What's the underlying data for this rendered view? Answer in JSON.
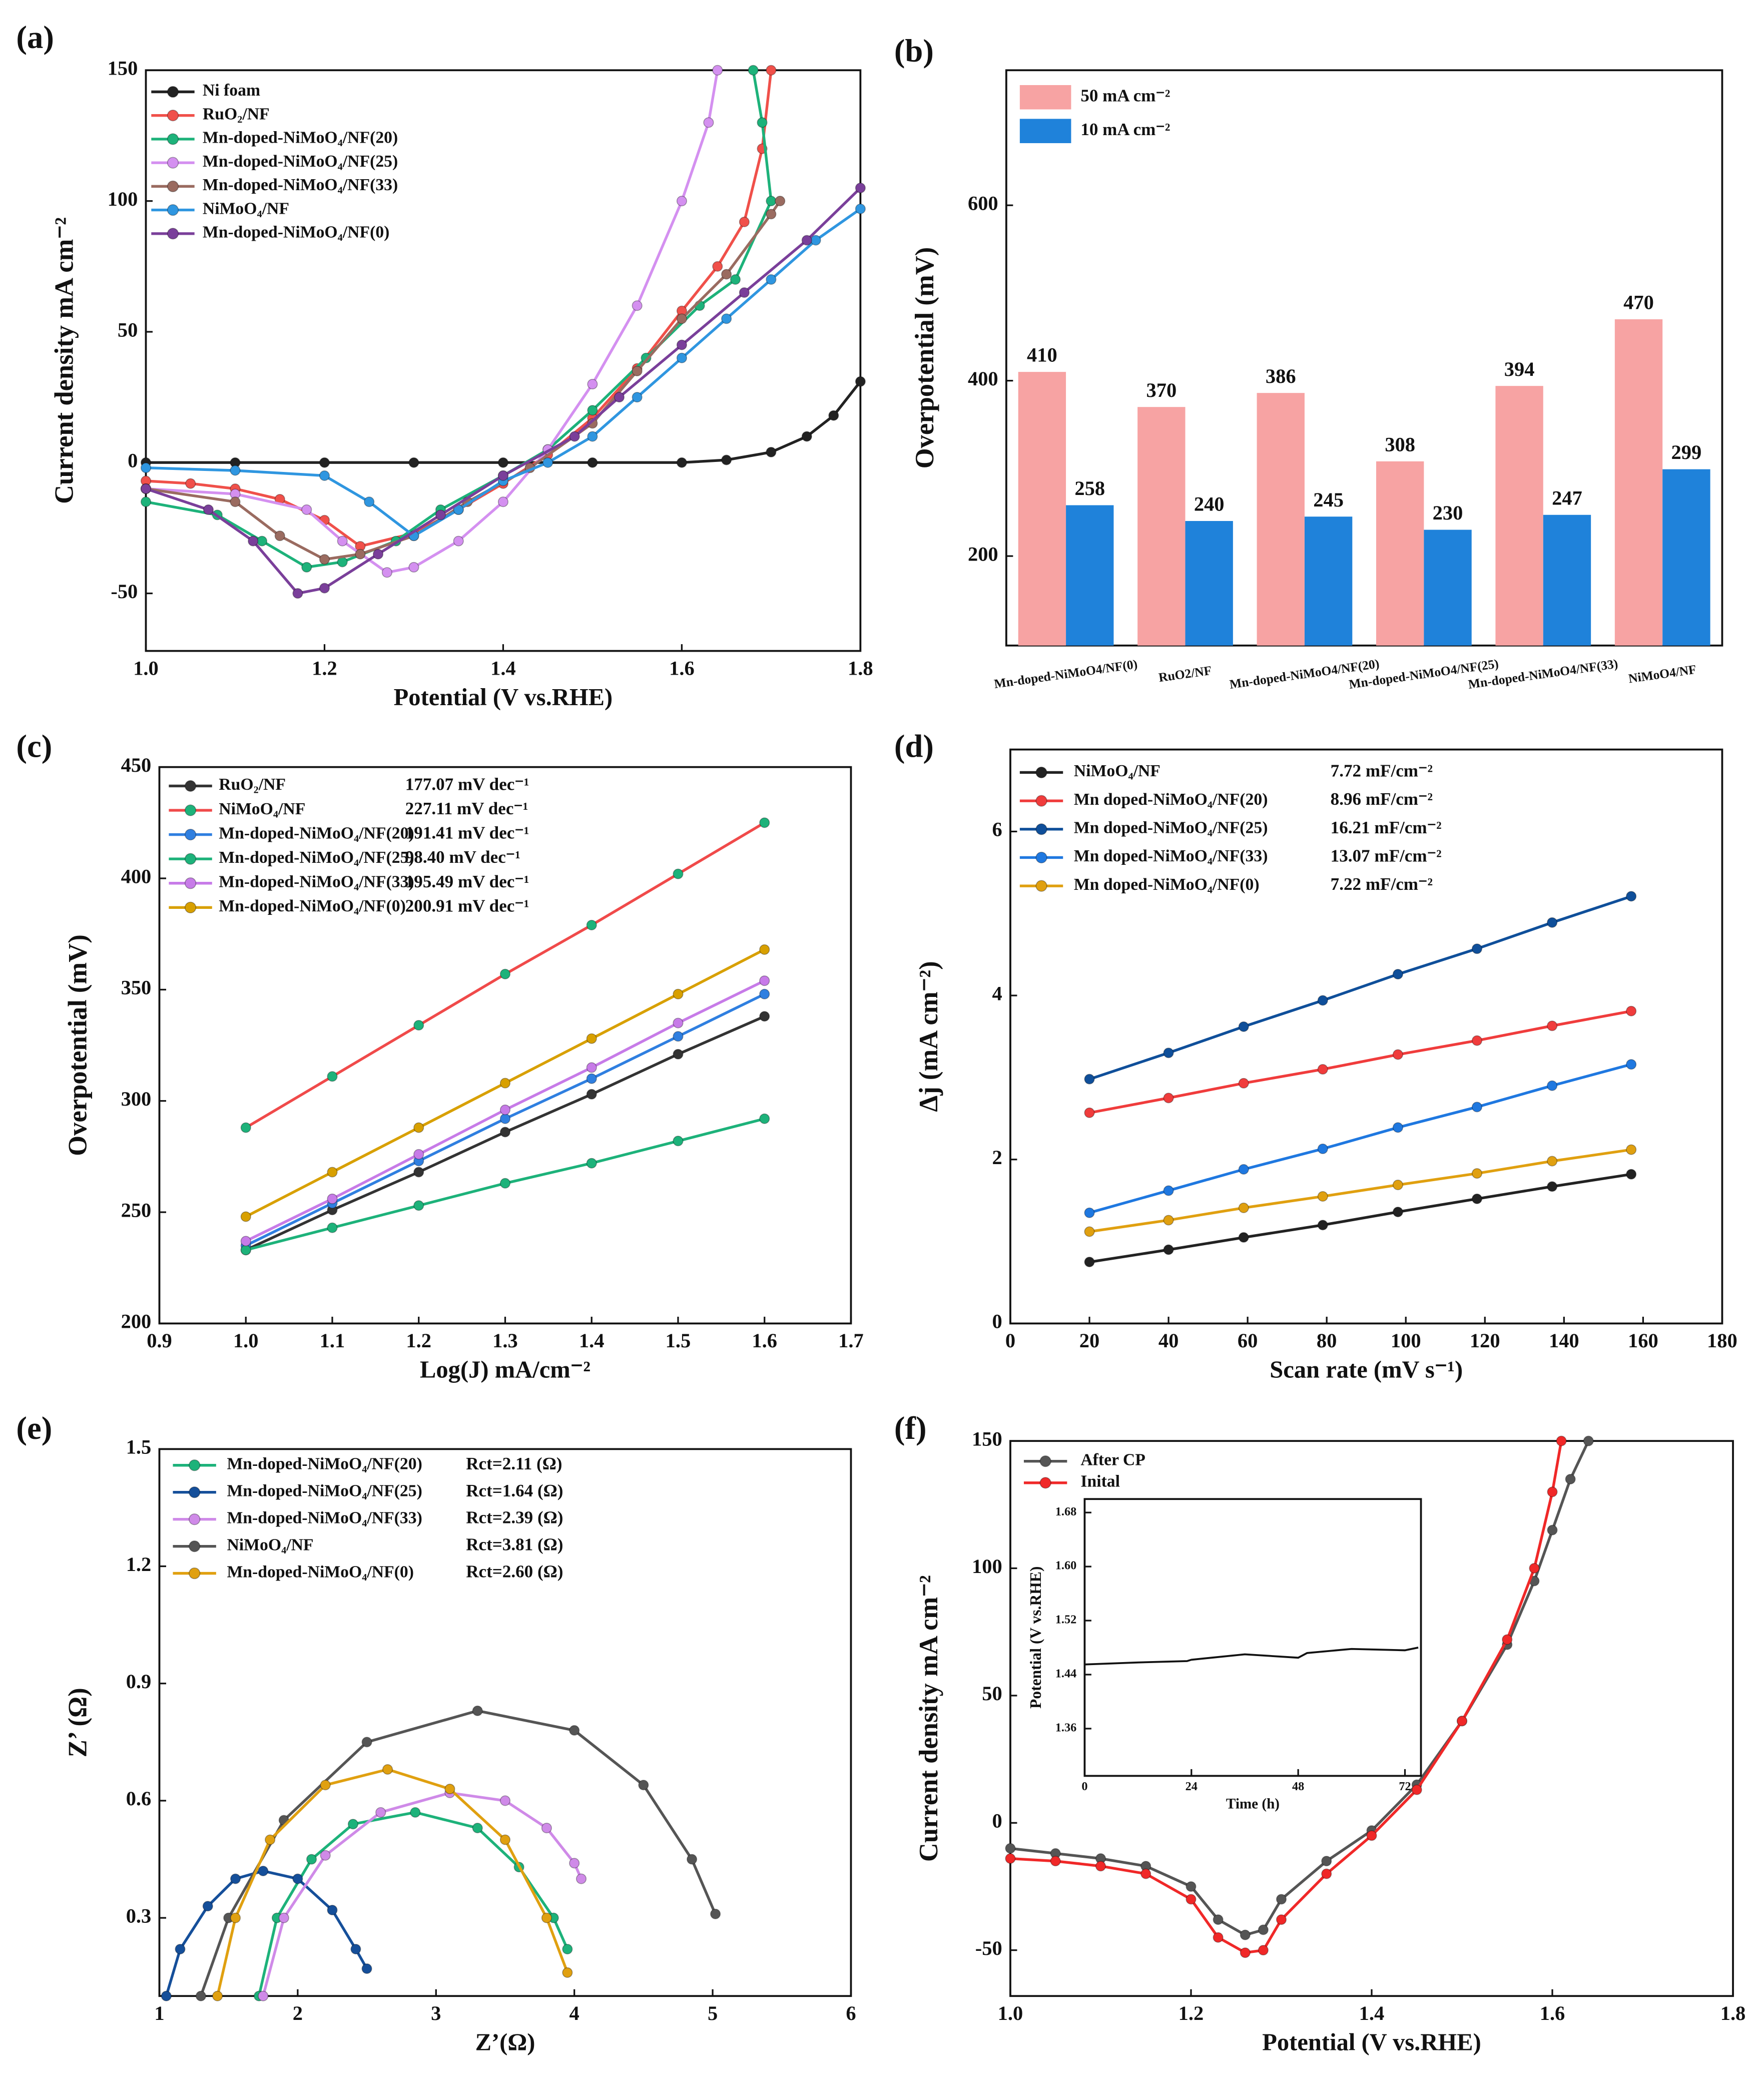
{
  "chart_data": [
    {
      "type": "line",
      "label": "(a)",
      "xlabel": "Potential (V vs.RHE)",
      "ylabel": "Current density mA cm⁻²",
      "xlim": [
        1.0,
        1.8
      ],
      "ylim": [
        -72,
        150
      ],
      "xticks": [
        {
          "value": 1.0,
          "label": "1.0"
        },
        1.2,
        1.4,
        1.6,
        1.8
      ],
      "yticks": [
        -50,
        0,
        50,
        100,
        150
      ],
      "series": [
        {
          "name": "Ni foam",
          "color": "#222222",
          "x": [
            1.0,
            1.1,
            1.2,
            1.3,
            1.4,
            1.5,
            1.6,
            1.65,
            1.7,
            1.74,
            1.77,
            1.8
          ],
          "values": [
            0,
            0,
            0,
            0,
            0,
            0,
            0,
            1,
            4,
            10,
            18,
            31
          ]
        },
        {
          "name": "RuO₂/NF",
          "color": "#f0504a",
          "x": [
            1.0,
            1.05,
            1.1,
            1.15,
            1.2,
            1.24,
            1.3,
            1.35,
            1.4,
            1.45,
            1.5,
            1.55,
            1.6,
            1.64,
            1.67,
            1.69,
            1.7
          ],
          "values": [
            -7,
            -8,
            -10,
            -14,
            -22,
            -32,
            -27,
            -18,
            -8,
            3,
            17,
            36,
            58,
            75,
            92,
            120,
            150
          ]
        },
        {
          "name": "Mn-doped-NiMoO₄/NF(20)",
          "color": "#1db27a",
          "x": [
            1.0,
            1.08,
            1.13,
            1.18,
            1.22,
            1.28,
            1.33,
            1.4,
            1.45,
            1.5,
            1.56,
            1.62,
            1.66,
            1.7,
            1.69,
            1.68
          ],
          "values": [
            -15,
            -20,
            -30,
            -40,
            -38,
            -30,
            -18,
            -5,
            5,
            20,
            40,
            60,
            70,
            100,
            130,
            150
          ]
        },
        {
          "name": "Mn-doped-NiMoO₄/NF(25)",
          "color": "#d490f0",
          "x": [
            1.0,
            1.1,
            1.18,
            1.22,
            1.27,
            1.3,
            1.35,
            1.4,
            1.45,
            1.5,
            1.55,
            1.6,
            1.63,
            1.64
          ],
          "values": [
            -10,
            -12,
            -18,
            -30,
            -42,
            -40,
            -30,
            -15,
            5,
            30,
            60,
            100,
            130,
            150
          ]
        },
        {
          "name": "Mn-doped-NiMoO₄/NF(33)",
          "color": "#9a6b60",
          "x": [
            1.0,
            1.1,
            1.15,
            1.2,
            1.24,
            1.3,
            1.36,
            1.43,
            1.5,
            1.55,
            1.6,
            1.65,
            1.7,
            1.71
          ],
          "values": [
            -10,
            -15,
            -28,
            -37,
            -35,
            -28,
            -15,
            -2,
            15,
            35,
            55,
            72,
            95,
            100
          ]
        },
        {
          "name": "NiMoO₄/NF",
          "color": "#2f96e0",
          "x": [
            1.0,
            1.1,
            1.2,
            1.25,
            1.3,
            1.35,
            1.4,
            1.45,
            1.5,
            1.55,
            1.6,
            1.65,
            1.7,
            1.75,
            1.8
          ],
          "values": [
            -2,
            -3,
            -5,
            -15,
            -28,
            -18,
            -7,
            0,
            10,
            25,
            40,
            55,
            70,
            85,
            97
          ]
        },
        {
          "name": "Mn-doped-NiMoO₄/NF(0)",
          "color": "#7a3f9a",
          "x": [
            1.0,
            1.07,
            1.12,
            1.17,
            1.2,
            1.26,
            1.33,
            1.4,
            1.48,
            1.53,
            1.6,
            1.67,
            1.74,
            1.8
          ],
          "values": [
            -10,
            -18,
            -30,
            -50,
            -48,
            -35,
            -20,
            -5,
            10,
            25,
            45,
            65,
            85,
            105
          ]
        }
      ]
    },
    {
      "type": "bar",
      "label": "(b)",
      "ylabel": "Overpotential (mV)",
      "ylim": [
        98,
        754
      ],
      "yticks": [
        200,
        400,
        600
      ],
      "categories": [
        "Mn-doped-NiMoO4/NF(0)",
        "RuO2/NF",
        "Mn-doped-NiMoO4/NF(20)",
        "Mn-doped-NiMoO4/NF(25)",
        "Mn-doped-NiMoO4/NF(33)",
        "NiMoO4/NF"
      ],
      "series": [
        {
          "name": "50 mA cm⁻²",
          "color": "#f7a3a3",
          "values": [
            410,
            370,
            386,
            308,
            394,
            470
          ]
        },
        {
          "name": "10 mA cm⁻²",
          "color": "#1f82da",
          "values": [
            258,
            240,
            245,
            230,
            247,
            299
          ]
        }
      ]
    },
    {
      "type": "line",
      "label": "(c)",
      "xlabel": "Log(J) mA/cm⁻²",
      "ylabel": "Overpotential (mV)",
      "xlim": [
        0.9,
        1.7
      ],
      "ylim": [
        200,
        450
      ],
      "xticks": [
        0.9,
        {
          "value": 1.0,
          "label": "1.0"
        },
        1.1,
        1.2,
        1.3,
        1.4,
        1.5,
        1.6,
        1.7
      ],
      "yticks": [
        200,
        250,
        300,
        350,
        400,
        450
      ],
      "series": [
        {
          "name": "RuO₂/NF",
          "note": "177.07 mV dec⁻¹",
          "color": "#333333",
          "x": [
            1.0,
            1.1,
            1.2,
            1.3,
            1.4,
            1.5,
            1.6
          ],
          "values": [
            233,
            251,
            268,
            286,
            303,
            321,
            338
          ]
        },
        {
          "name": "NiMoO₄/NF",
          "note": "227.11 mV dec⁻¹",
          "color": "#f04a4a",
          "marker_color": "#1db27a",
          "x": [
            1.0,
            1.1,
            1.2,
            1.3,
            1.4,
            1.5,
            1.6
          ],
          "values": [
            288,
            311,
            334,
            357,
            379,
            402,
            425
          ]
        },
        {
          "name": "Mn-doped-NiMoO₄/NF(20)",
          "note": "191.41 mV dec⁻¹",
          "color": "#2f7fe0",
          "x": [
            1.0,
            1.1,
            1.2,
            1.3,
            1.4,
            1.5,
            1.6
          ],
          "values": [
            235,
            254,
            273,
            292,
            310,
            329,
            348
          ]
        },
        {
          "name": "Mn-doped-NiMoO₄/NF(25)",
          "note": "98.40 mV dec⁻¹",
          "color": "#1db27a",
          "x": [
            1.0,
            1.1,
            1.2,
            1.3,
            1.4,
            1.5,
            1.6
          ],
          "values": [
            233,
            243,
            253,
            263,
            272,
            282,
            292
          ]
        },
        {
          "name": "Mn-doped-NiMoO₄/NF(33)",
          "note": "195.49 mV dec⁻¹",
          "color": "#c77be8",
          "x": [
            1.0,
            1.1,
            1.2,
            1.3,
            1.4,
            1.5,
            1.6
          ],
          "values": [
            237,
            256,
            276,
            296,
            315,
            335,
            354
          ]
        },
        {
          "name": "Mn-doped-NiMoO₄/NF(0)",
          "note": "200.91 mV dec⁻¹",
          "color": "#d8a000",
          "x": [
            1.0,
            1.1,
            1.2,
            1.3,
            1.4,
            1.5,
            1.6
          ],
          "values": [
            248,
            268,
            288,
            308,
            328,
            348,
            368
          ]
        }
      ]
    },
    {
      "type": "line",
      "label": "(d)",
      "xlabel": "Scan rate (mV s⁻¹)",
      "ylabel": "Δj (mA cm⁻²)",
      "xlim": [
        0,
        180
      ],
      "ylim": [
        0,
        7
      ],
      "xticks": [
        0,
        20,
        40,
        60,
        80,
        100,
        120,
        140,
        160,
        180
      ],
      "yticks": [
        0,
        2,
        4,
        6
      ],
      "series": [
        {
          "name": "NiMoO₄/NF",
          "note": "7.72 mF/cm⁻²",
          "color": "#222222",
          "x": [
            20,
            40,
            59,
            79,
            98,
            118,
            137,
            157
          ],
          "values": [
            0.75,
            0.9,
            1.05,
            1.2,
            1.36,
            1.52,
            1.67,
            1.82
          ]
        },
        {
          "name": "Mn doped-NiMoO₄/NF(20)",
          "note": "8.96 mF/cm⁻²",
          "color": "#f03c3c",
          "x": [
            20,
            40,
            59,
            79,
            98,
            118,
            137,
            157
          ],
          "values": [
            2.57,
            2.75,
            2.93,
            3.1,
            3.28,
            3.45,
            3.63,
            3.81
          ]
        },
        {
          "name": "Mn doped-NiMoO₄/NF(25)",
          "note": "16.21 mF/cm⁻²",
          "color": "#0f4f9a",
          "x": [
            20,
            40,
            59,
            79,
            98,
            118,
            137,
            157
          ],
          "values": [
            2.98,
            3.3,
            3.62,
            3.94,
            4.26,
            4.57,
            4.89,
            5.21
          ]
        },
        {
          "name": "Mn doped-NiMoO₄/NF(33)",
          "note": "13.07 mF/cm⁻²",
          "color": "#1f78e0",
          "x": [
            20,
            40,
            59,
            79,
            98,
            118,
            137,
            157
          ],
          "values": [
            1.35,
            1.62,
            1.88,
            2.13,
            2.39,
            2.64,
            2.9,
            3.16
          ]
        },
        {
          "name": "Mn doped-NiMoO₄/NF(0)",
          "note": "7.22 mF/cm⁻²",
          "color": "#e0a010",
          "x": [
            20,
            40,
            59,
            79,
            98,
            118,
            137,
            157
          ],
          "values": [
            1.12,
            1.26,
            1.41,
            1.55,
            1.69,
            1.83,
            1.98,
            2.12
          ]
        }
      ]
    },
    {
      "type": "line",
      "label": "(e)",
      "xlabel": "Z’(Ω)",
      "ylabel": "Z’ (Ω)",
      "xlim": [
        1,
        6
      ],
      "ylim": [
        0.1,
        1.5
      ],
      "xticks": [
        1,
        2,
        3,
        4,
        5,
        6
      ],
      "yticks": [
        0.3,
        0.6,
        0.9,
        1.2,
        1.5
      ],
      "series": [
        {
          "name": "Mn-doped-NiMoO₄/NF(20)",
          "note": "Rct=2.11 (Ω)",
          "color": "#1db27a",
          "x": [
            1.72,
            1.85,
            2.1,
            2.4,
            2.85,
            3.3,
            3.6,
            3.85,
            3.95
          ],
          "values": [
            0.1,
            0.3,
            0.45,
            0.54,
            0.57,
            0.53,
            0.43,
            0.3,
            0.22
          ]
        },
        {
          "name": "Mn-doped-NiMoO₄/NF(25)",
          "note": "Rct=1.64 (Ω)",
          "color": "#154f9a",
          "x": [
            1.05,
            1.15,
            1.35,
            1.55,
            1.75,
            2.0,
            2.25,
            2.42,
            2.5
          ],
          "values": [
            0.1,
            0.22,
            0.33,
            0.4,
            0.42,
            0.4,
            0.32,
            0.22,
            0.17
          ]
        },
        {
          "name": "Mn-doped-NiMoO₄/NF(33)",
          "note": "Rct=2.39 (Ω)",
          "color": "#cf8ae8",
          "x": [
            1.75,
            1.9,
            2.2,
            2.6,
            3.1,
            3.5,
            3.8,
            4.0,
            4.05
          ],
          "values": [
            0.1,
            0.3,
            0.46,
            0.57,
            0.62,
            0.6,
            0.53,
            0.44,
            0.4
          ]
        },
        {
          "name": "NiMoO₄/NF",
          "note": "Rct=3.81 (Ω)",
          "color": "#555555",
          "x": [
            1.3,
            1.5,
            1.9,
            2.5,
            3.3,
            4.0,
            4.5,
            4.85,
            5.02
          ],
          "values": [
            0.1,
            0.3,
            0.55,
            0.75,
            0.83,
            0.78,
            0.64,
            0.45,
            0.31
          ]
        },
        {
          "name": "Mn-doped-NiMoO₄/NF(0)",
          "note": "Rct=2.60 (Ω)",
          "color": "#e0a010",
          "x": [
            1.42,
            1.55,
            1.8,
            2.2,
            2.65,
            3.1,
            3.5,
            3.8,
            3.95
          ],
          "values": [
            0.1,
            0.3,
            0.5,
            0.64,
            0.68,
            0.63,
            0.5,
            0.3,
            0.16
          ]
        }
      ]
    },
    {
      "type": "line",
      "label": "(f)",
      "xlabel": "Potential (V vs.RHE)",
      "ylabel": "Current density mA cm⁻²",
      "xlim": [
        1.0,
        1.8
      ],
      "ylim": [
        -68,
        150
      ],
      "xticks": [
        {
          "value": 1.0,
          "label": "1.0"
        },
        1.2,
        1.4,
        1.6,
        1.8
      ],
      "yticks": [
        -50,
        0,
        50,
        100,
        150
      ],
      "series": [
        {
          "name": "After CP",
          "color": "#555555",
          "x": [
            1.0,
            1.05,
            1.1,
            1.15,
            1.2,
            1.23,
            1.26,
            1.28,
            1.3,
            1.35,
            1.4,
            1.45,
            1.5,
            1.55,
            1.58,
            1.6,
            1.62,
            1.64
          ],
          "values": [
            -10,
            -12,
            -14,
            -17,
            -25,
            -38,
            -44,
            -42,
            -30,
            -15,
            -3,
            15,
            40,
            70,
            95,
            115,
            135,
            150
          ]
        },
        {
          "name": "Inital",
          "color": "#f02828",
          "x": [
            1.0,
            1.05,
            1.1,
            1.15,
            1.2,
            1.23,
            1.26,
            1.28,
            1.3,
            1.35,
            1.4,
            1.45,
            1.5,
            1.55,
            1.58,
            1.6,
            1.61
          ],
          "values": [
            -14,
            -15,
            -17,
            -20,
            -30,
            -45,
            -51,
            -50,
            -38,
            -20,
            -5,
            13,
            40,
            72,
            100,
            130,
            150
          ]
        }
      ],
      "inset": {
        "type": "line",
        "xlabel": "Time (h)",
        "ylabel": "Potential (V vs.RHE)",
        "xlim": [
          0,
          75.6
        ],
        "ylim": [
          1.29,
          1.7
        ],
        "xticks": [
          0,
          24,
          48,
          72
        ],
        "yticks": [
          1.36,
          1.44,
          1.52,
          {
            "value": 1.6,
            "label": "1.60"
          },
          1.68
        ],
        "series": [
          {
            "color": "#111111",
            "x": [
              0,
              12,
              23,
              24,
              36,
              48,
              50,
              60,
              72,
              75
            ],
            "values": [
              1.455,
              1.458,
              1.46,
              1.462,
              1.47,
              1.465,
              1.472,
              1.478,
              1.476,
              1.48
            ]
          }
        ]
      }
    }
  ]
}
